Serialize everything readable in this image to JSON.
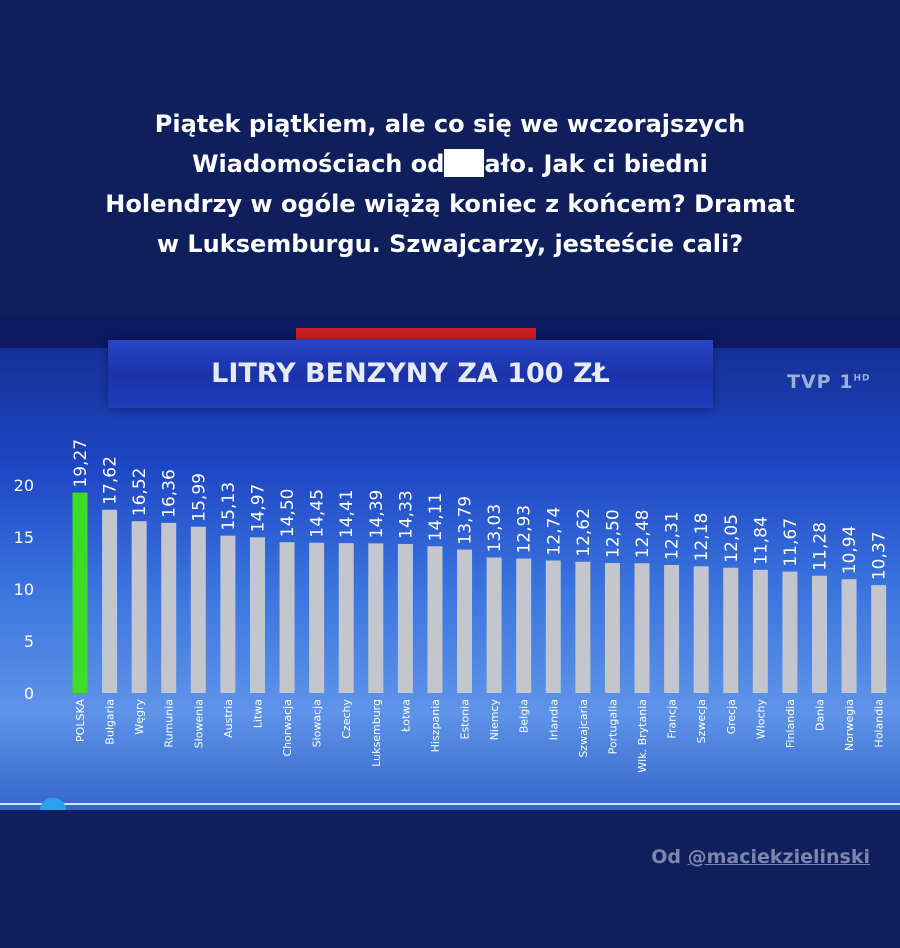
{
  "caption": {
    "line1": "Piątek piątkiem, ale co się we wczorajszych",
    "line2a": "Wiadomościach od",
    "line2b": "ało. Jak ci biedni",
    "line3": "Holendrzy w ogóle wiążą koniec z końcem? Dramat",
    "line4": "w Luksemburgu. Szwajcarzy, jesteście cali?"
  },
  "logo": {
    "text": "TVP 1",
    "hd": "HD"
  },
  "credit": {
    "prefix": "Od ",
    "handle": "@maciekzielinski"
  },
  "colors": {
    "highlight": "#3fdc28",
    "bar": "#c3c6cc",
    "axis_text": "#ffffff"
  },
  "chart_data": {
    "type": "bar",
    "title": "LITRY BENZYNY ZA 100 ZŁ",
    "categories": [
      "POLSKA",
      "Bułgaria",
      "Węgry",
      "Rumunia",
      "Słowenia",
      "Austria",
      "Litwa",
      "Chorwacja",
      "Słowacja",
      "Czechy",
      "Luksemburg",
      "Łotwa",
      "Hiszpania",
      "Estonia",
      "Niemcy",
      "Belgia",
      "Irlandia",
      "Szwajcaria",
      "Portugalia",
      "Wlk. Brytania",
      "Francja",
      "Szwecja",
      "Grecja",
      "Włochy",
      "Finlandia",
      "Dania",
      "Norwegia",
      "Holandia"
    ],
    "values": [
      19.27,
      17.62,
      16.52,
      16.36,
      15.99,
      15.13,
      14.97,
      14.5,
      14.45,
      14.41,
      14.39,
      14.33,
      14.11,
      13.79,
      13.03,
      12.93,
      12.74,
      12.62,
      12.5,
      12.48,
      12.31,
      12.18,
      12.05,
      11.84,
      11.67,
      11.28,
      10.94,
      10.37
    ],
    "value_labels": [
      "19,27",
      "17,62",
      "16,52",
      "16,36",
      "15,99",
      "15,13",
      "14,97",
      "14,50",
      "14,45",
      "14,41",
      "14,39",
      "14,33",
      "14,11",
      "13,79",
      "13,03",
      "12,93",
      "12,74",
      "12,62",
      "12,50",
      "12,48",
      "12,31",
      "12,18",
      "12,05",
      "11,84",
      "11,67",
      "11,28",
      "10,94",
      "10,37"
    ],
    "highlight": "POLSKA",
    "yticks": [
      "0",
      "5",
      "10",
      "15",
      "20"
    ],
    "ylim": [
      0,
      20
    ],
    "grid": false,
    "legend": "none"
  }
}
